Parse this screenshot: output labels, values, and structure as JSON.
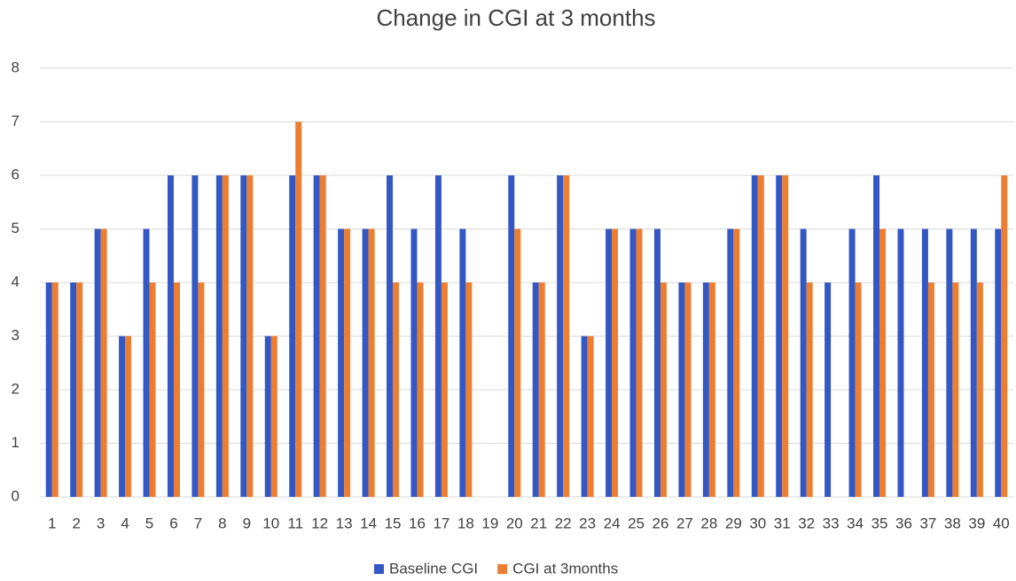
{
  "chart_data": {
    "type": "bar",
    "title": "Change in CGI at 3 months",
    "categories": [
      "1",
      "2",
      "3",
      "4",
      "5",
      "6",
      "7",
      "8",
      "9",
      "10",
      "11",
      "12",
      "13",
      "14",
      "15",
      "16",
      "17",
      "18",
      "19",
      "20",
      "21",
      "22",
      "23",
      "24",
      "25",
      "26",
      "27",
      "28",
      "29",
      "30",
      "31",
      "32",
      "33",
      "34",
      "35",
      "36",
      "37",
      "38",
      "39",
      "40"
    ],
    "series": [
      {
        "name": "Baseline CGI",
        "color": "#3358c4",
        "values": [
          4,
          4,
          5,
          3,
          5,
          6,
          6,
          6,
          6,
          3,
          6,
          6,
          5,
          5,
          6,
          5,
          6,
          5,
          null,
          6,
          4,
          6,
          3,
          5,
          5,
          5,
          4,
          4,
          5,
          6,
          6,
          5,
          4,
          5,
          6,
          5,
          5,
          5,
          5,
          5
        ]
      },
      {
        "name": "CGI at 3months",
        "color": "#ed7d31",
        "values": [
          4,
          4,
          5,
          3,
          4,
          4,
          4,
          6,
          6,
          3,
          7,
          6,
          5,
          5,
          4,
          4,
          4,
          4,
          null,
          5,
          4,
          6,
          3,
          5,
          5,
          4,
          4,
          4,
          5,
          6,
          6,
          4,
          null,
          4,
          5,
          null,
          4,
          4,
          4,
          6
        ]
      }
    ],
    "ylim": [
      0,
      8
    ],
    "yticks": [
      0,
      1,
      2,
      3,
      4,
      5,
      6,
      7,
      8
    ],
    "grid": true,
    "legend": "bottom"
  }
}
